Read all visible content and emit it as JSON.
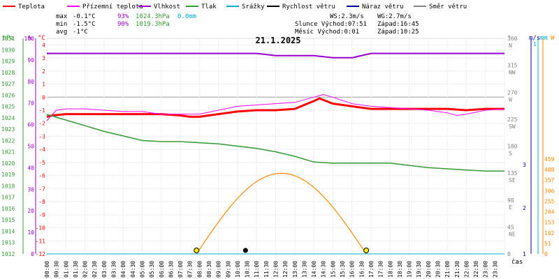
{
  "chart_data": {
    "type": "line",
    "title": "21.1.2025",
    "legend": [
      {
        "name": "Teplota",
        "color": "#ff0000"
      },
      {
        "name": "Přízemní teplota",
        "color": "#ff00ff"
      },
      {
        "name": "Vlhkost",
        "color": "#9900cc"
      },
      {
        "name": "Tlak",
        "color": "#339933"
      },
      {
        "name": "Srážky",
        "color": "#00aacc"
      },
      {
        "name": "Rychlost větru",
        "color": "#000000"
      },
      {
        "name": "Náraz větru",
        "color": "#000099"
      },
      {
        "name": "Směr větru",
        "color": "#808080"
      }
    ],
    "stats": {
      "max": {
        "label": "max",
        "temp": "-0.1°C",
        "humidity": "93%",
        "pressure": "1024.3hPa",
        "rain": "0.0mm"
      },
      "min": {
        "label": "min",
        "temp": "-1.5°C",
        "humidity": "90%",
        "pressure": "1019.3hPa"
      },
      "avg": {
        "label": "avg",
        "temp": "-1°C"
      }
    },
    "info": {
      "ws": "WS:2.3m/s",
      "wg": "WG:2.7m/s",
      "sun_rise": "Slunce Východ:07:51",
      "sun_set": "Západ:16:45",
      "moon_rise": "Měsíc  Východ:0:01",
      "moon_set": "Západ:10:25"
    },
    "axes": {
      "hpa_label": "hPa",
      "pct_label": "%",
      "c_label": "°C",
      "deg_label": "°",
      "ms_label": "m/s",
      "mm_label": "mm",
      "w_label": "W",
      "x_label": "čas",
      "hpa_ticks": [
        "1031",
        "1030",
        "1029",
        "1028",
        "1027",
        "1026",
        "1025",
        "1024",
        "1023",
        "1022",
        "1021",
        "1020",
        "1019",
        "1018",
        "1017",
        "1016",
        "1015",
        "1014",
        "1013",
        "1012"
      ],
      "pct_ticks": [
        "100",
        "90",
        "80",
        "70",
        "60",
        "50",
        "40",
        "30",
        "20",
        "10",
        "0"
      ],
      "c_ticks": [
        "4",
        "3",
        "2",
        "1",
        "0",
        "-1",
        "-2",
        "-3",
        "-4",
        "-5",
        "-6",
        "-7",
        "-8",
        "-9",
        "-10",
        "-11",
        "-12"
      ],
      "dir_ticks": [
        {
          "deg": "360",
          "dir": "N"
        },
        {
          "deg": "315",
          "dir": "NW"
        },
        {
          "deg": "270",
          "dir": "W"
        },
        {
          "deg": "225",
          "dir": "SW"
        },
        {
          "deg": "180",
          "dir": "S"
        },
        {
          "deg": "135",
          "dir": "SE"
        },
        {
          "deg": "90",
          "dir": "E"
        },
        {
          "deg": "45",
          "dir": "NE"
        },
        {
          "deg": "0",
          "dir": ""
        }
      ],
      "ms_ticks": [
        "3",
        "2",
        "1"
      ],
      "mm_ticks": [
        "1"
      ],
      "w_ticks": [
        "459",
        "408",
        "357",
        "306",
        "255",
        "204",
        "153",
        "102",
        "51",
        "0"
      ],
      "time_ticks": [
        "00:00",
        "00:30",
        "01:00",
        "01:30",
        "02:00",
        "02:30",
        "03:00",
        "03:30",
        "04:00",
        "04:30",
        "05:00",
        "05:30",
        "06:00",
        "06:30",
        "07:00",
        "07:30",
        "08:00",
        "08:30",
        "09:00",
        "09:30",
        "10:00",
        "10:30",
        "11:00",
        "11:30",
        "12:00",
        "12:30",
        "13:00",
        "13:30",
        "14:00",
        "14:30",
        "15:00",
        "15:30",
        "16:00",
        "16:30",
        "17:00",
        "17:30",
        "18:00",
        "18:30",
        "19:00",
        "19:30",
        "20:00",
        "20:30",
        "21:00",
        "21:30",
        "22:00",
        "22:30",
        "23:00",
        "23:30"
      ]
    },
    "ranges": {
      "hours": [
        0,
        24
      ],
      "temp_c": [
        -12,
        4.5
      ],
      "humidity_pct": [
        0,
        100
      ],
      "pressure_hpa": [
        1012,
        1031
      ],
      "wind_dir_deg": [
        0,
        360
      ],
      "solar_w": [
        0,
        459
      ]
    },
    "series": [
      {
        "name": "Teplota",
        "x": [
          0,
          0.3,
          1,
          2,
          3,
          4,
          5,
          6,
          7,
          7.5,
          8,
          9,
          10,
          11,
          12,
          13,
          13.5,
          14,
          14.3,
          15,
          16,
          16.5,
          17,
          18,
          19,
          20,
          21,
          22,
          23,
          24
        ],
        "y": [
          -1.5,
          -1.4,
          -1.3,
          -1.3,
          -1.3,
          -1.3,
          -1.3,
          -1.3,
          -1.4,
          -1.5,
          -1.5,
          -1.3,
          -1.1,
          -1.0,
          -1.0,
          -0.9,
          -0.6,
          -0.3,
          -0.1,
          -0.5,
          -0.7,
          -0.8,
          -0.9,
          -0.9,
          -0.9,
          -0.9,
          -0.9,
          -1.0,
          -0.9,
          -0.9
        ]
      },
      {
        "name": "Přízemní teplota",
        "x": [
          0,
          0.5,
          1,
          2,
          3,
          4,
          5,
          6,
          7,
          8,
          9,
          10,
          11,
          12,
          13,
          14,
          14.5,
          15,
          16,
          17,
          18,
          19,
          20,
          21,
          21.5,
          22,
          23,
          24
        ],
        "y": [
          -1.8,
          -1.0,
          -0.9,
          -0.9,
          -1.0,
          -1.1,
          -1.1,
          -1.3,
          -1.3,
          -1.3,
          -1.0,
          -0.7,
          -0.6,
          -0.5,
          -0.4,
          0.0,
          0.2,
          0.0,
          -0.5,
          -0.7,
          -0.8,
          -0.9,
          -1.0,
          -1.2,
          -1.4,
          -1.3,
          -1.0,
          -0.9
        ]
      },
      {
        "name": "Vlhkost",
        "x": [
          0,
          6,
          7,
          8,
          9,
          11,
          12,
          14,
          15,
          16,
          17,
          24
        ],
        "y": [
          93,
          93,
          93,
          93,
          93,
          93,
          92,
          92,
          91,
          91,
          93,
          93
        ]
      },
      {
        "name": "Tlak",
        "x": [
          0,
          1,
          2,
          3,
          4,
          5,
          6,
          7,
          8,
          9,
          10,
          11,
          12,
          13,
          14,
          15,
          16,
          17,
          18,
          19,
          20,
          21,
          22,
          23,
          24
        ],
        "y": [
          1024.3,
          1023.8,
          1023.3,
          1022.8,
          1022.4,
          1022.0,
          1021.9,
          1021.9,
          1021.8,
          1021.7,
          1021.5,
          1021.3,
          1021.0,
          1020.6,
          1020.1,
          1020.0,
          1020.0,
          1020.0,
          1020.0,
          1019.8,
          1019.6,
          1019.5,
          1019.4,
          1019.3,
          1019.3
        ]
      },
      {
        "name": "Srážky",
        "x": [
          0,
          24
        ],
        "y": [
          0,
          0
        ]
      }
    ]
  }
}
